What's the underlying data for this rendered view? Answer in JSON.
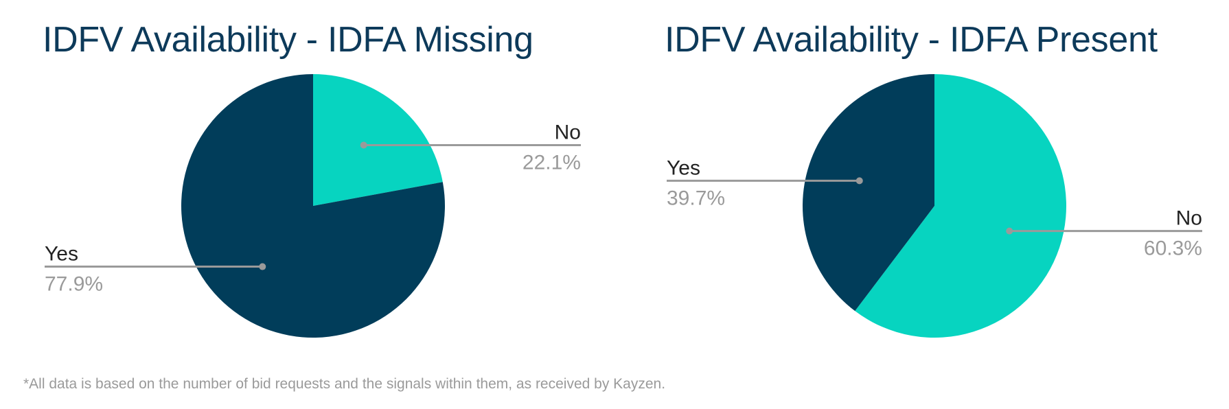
{
  "chart_data": [
    {
      "type": "pie",
      "title": "IDFV Availability - IDFA Missing",
      "slices": [
        {
          "label": "No",
          "value": 22.1,
          "display": "22.1%",
          "color": "#07d4c0"
        },
        {
          "label": "Yes",
          "value": 77.9,
          "display": "77.9%",
          "color": "#013d5a"
        }
      ]
    },
    {
      "type": "pie",
      "title": "IDFV Availability - IDFA Present",
      "slices": [
        {
          "label": "No",
          "value": 60.3,
          "display": "60.3%",
          "color": "#07d4c0"
        },
        {
          "label": "Yes",
          "value": 39.7,
          "display": "39.7%",
          "color": "#013d5a"
        }
      ]
    }
  ],
  "footnote": "*All data is based on the number of bid requests and the signals within them, as received by Kayzen.",
  "colors": {
    "title": "#0d3a5a",
    "label": "#222222",
    "percent": "#9a9a9a",
    "leader": "#9a9a9a"
  }
}
